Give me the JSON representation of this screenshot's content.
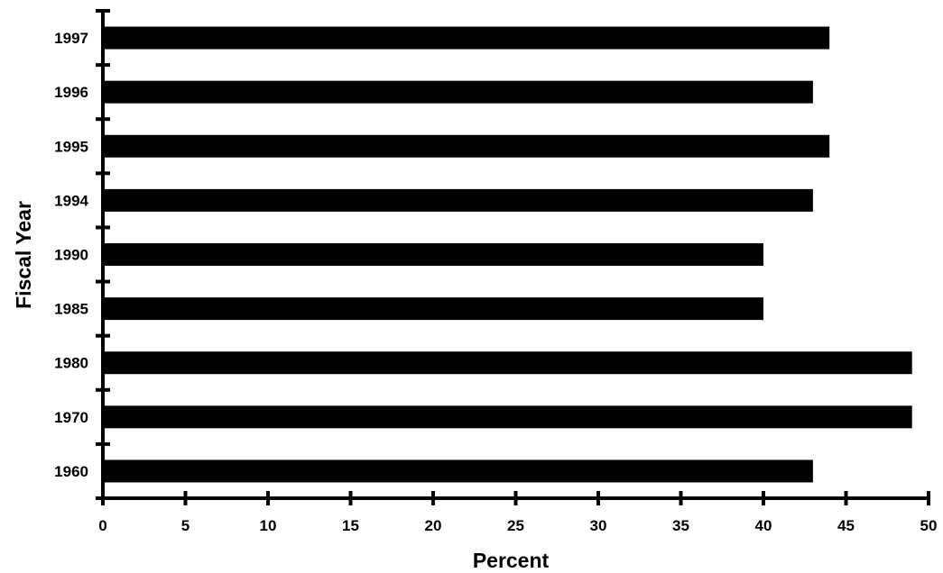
{
  "chart_data": {
    "type": "bar",
    "orientation": "horizontal",
    "categories": [
      "1997",
      "1996",
      "1995",
      "1994",
      "1990",
      "1985",
      "1980",
      "1970",
      "1960"
    ],
    "values": [
      44,
      43,
      44,
      43,
      40,
      40,
      49,
      49,
      43
    ],
    "xlabel": "Percent",
    "ylabel": "Fiscal Year",
    "xlim": [
      0,
      50
    ],
    "xticks": [
      "0",
      "5",
      "10",
      "15",
      "20",
      "25",
      "30",
      "35",
      "40",
      "45",
      "50"
    ],
    "grid": false,
    "legend": "none",
    "bar_color": "#000000"
  }
}
